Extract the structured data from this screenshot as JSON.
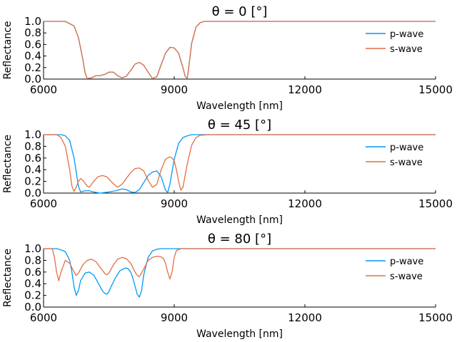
{
  "chart_data": [
    {
      "type": "line",
      "title": "θ = 0 [°]",
      "xlabel": "Wavelength [nm]",
      "ylabel": "Reflectance",
      "xlim": [
        6000,
        15000
      ],
      "ylim": [
        0,
        1
      ],
      "xticks": [
        "6000",
        "9000",
        "12000",
        "15000"
      ],
      "yticks": [
        "0.0",
        "0.2",
        "0.4",
        "0.6",
        "0.8",
        "1.0"
      ],
      "legend": "right",
      "grid": false,
      "series": [
        {
          "name": "p-wave",
          "color": "#009AFA",
          "x": [
            6000,
            6500,
            6700,
            6800,
            6900,
            6950,
            7000,
            7100,
            7200,
            7300,
            7400,
            7500,
            7600,
            7700,
            7800,
            7900,
            8000,
            8100,
            8200,
            8300,
            8400,
            8500,
            8600,
            8700,
            8800,
            8900,
            9000,
            9100,
            9200,
            9250,
            9300,
            9350,
            9400,
            9500,
            9600,
            9700,
            9800,
            10000,
            11000,
            12000,
            13000,
            14000,
            15000
          ],
          "y": [
            1.0,
            1.0,
            0.92,
            0.72,
            0.35,
            0.12,
            0.01,
            0.02,
            0.06,
            0.06,
            0.08,
            0.12,
            0.12,
            0.06,
            0.02,
            0.05,
            0.15,
            0.26,
            0.29,
            0.24,
            0.12,
            0.01,
            0.04,
            0.25,
            0.45,
            0.55,
            0.54,
            0.45,
            0.2,
            0.05,
            0.01,
            0.3,
            0.62,
            0.9,
            0.98,
            1.0,
            1.0,
            1.0,
            1.0,
            1.0,
            1.0,
            1.0,
            1.0
          ]
        },
        {
          "name": "s-wave",
          "color": "#E26F46",
          "x": [
            6000,
            6500,
            6700,
            6800,
            6900,
            6950,
            7000,
            7100,
            7200,
            7300,
            7400,
            7500,
            7600,
            7700,
            7800,
            7900,
            8000,
            8100,
            8200,
            8300,
            8400,
            8500,
            8600,
            8700,
            8800,
            8900,
            9000,
            9100,
            9200,
            9250,
            9300,
            9350,
            9400,
            9500,
            9600,
            9700,
            9800,
            10000,
            11000,
            12000,
            13000,
            14000,
            15000
          ],
          "y": [
            1.0,
            1.0,
            0.92,
            0.72,
            0.35,
            0.12,
            0.01,
            0.02,
            0.06,
            0.06,
            0.08,
            0.12,
            0.12,
            0.06,
            0.02,
            0.05,
            0.15,
            0.26,
            0.29,
            0.24,
            0.12,
            0.01,
            0.04,
            0.25,
            0.45,
            0.55,
            0.54,
            0.45,
            0.2,
            0.05,
            0.01,
            0.3,
            0.62,
            0.9,
            0.98,
            1.0,
            1.0,
            1.0,
            1.0,
            1.0,
            1.0,
            1.0,
            1.0
          ]
        }
      ]
    },
    {
      "type": "line",
      "title": "θ = 45 [°]",
      "xlabel": "Wavelength [nm]",
      "ylabel": "Reflectance",
      "xlim": [
        6000,
        15000
      ],
      "ylim": [
        0,
        1
      ],
      "xticks": [
        "6000",
        "9000",
        "12000",
        "15000"
      ],
      "yticks": [
        "0.0",
        "0.2",
        "0.4",
        "0.6",
        "0.8",
        "1.0"
      ],
      "legend": "right",
      "grid": false,
      "series": [
        {
          "name": "p-wave",
          "color": "#009AFA",
          "x": [
            6000,
            6400,
            6500,
            6600,
            6700,
            6800,
            6850,
            6950,
            7050,
            7150,
            7300,
            7500,
            7650,
            7800,
            7900,
            8000,
            8100,
            8200,
            8300,
            8400,
            8500,
            8600,
            8700,
            8800,
            8850,
            8900,
            9000,
            9100,
            9200,
            9300,
            9400,
            9500,
            9600,
            9800,
            10500,
            12000,
            15000
          ],
          "y": [
            1.0,
            1.0,
            0.98,
            0.9,
            0.6,
            0.12,
            0.02,
            0.04,
            0.04,
            0.02,
            0.0,
            0.02,
            0.04,
            0.07,
            0.06,
            0.02,
            0.01,
            0.06,
            0.18,
            0.3,
            0.36,
            0.38,
            0.28,
            0.05,
            0.01,
            0.15,
            0.58,
            0.85,
            0.95,
            0.98,
            1.0,
            1.0,
            1.0,
            1.0,
            1.0,
            1.0,
            1.0
          ]
        },
        {
          "name": "s-wave",
          "color": "#E26F46",
          "x": [
            6000,
            6300,
            6400,
            6500,
            6600,
            6650,
            6700,
            6750,
            6800,
            6850,
            6900,
            7000,
            7050,
            7150,
            7250,
            7350,
            7450,
            7550,
            7650,
            7700,
            7800,
            7900,
            8000,
            8100,
            8200,
            8300,
            8350,
            8400,
            8500,
            8600,
            8700,
            8800,
            8900,
            8950,
            9000,
            9050,
            9100,
            9150,
            9200,
            9300,
            9400,
            9500,
            9600,
            9800,
            10500,
            12000,
            15000
          ],
          "y": [
            1.0,
            1.0,
            0.95,
            0.8,
            0.4,
            0.12,
            0.03,
            0.1,
            0.2,
            0.25,
            0.22,
            0.12,
            0.1,
            0.2,
            0.28,
            0.3,
            0.28,
            0.2,
            0.13,
            0.1,
            0.15,
            0.25,
            0.35,
            0.42,
            0.43,
            0.38,
            0.3,
            0.22,
            0.1,
            0.15,
            0.4,
            0.58,
            0.62,
            0.6,
            0.55,
            0.4,
            0.2,
            0.05,
            0.1,
            0.5,
            0.82,
            0.95,
            0.99,
            1.0,
            1.0,
            1.0,
            1.0
          ]
        }
      ]
    },
    {
      "type": "line",
      "title": "θ = 80 [°]",
      "xlabel": "Wavelength [nm]",
      "ylabel": "Reflectance",
      "xlim": [
        6000,
        15000
      ],
      "ylim": [
        0,
        1
      ],
      "xticks": [
        "6000",
        "9000",
        "12000",
        "15000"
      ],
      "yticks": [
        "0.0",
        "0.2",
        "0.4",
        "0.6",
        "0.8",
        "1.0"
      ],
      "legend": "right",
      "grid": false,
      "series": [
        {
          "name": "p-wave",
          "color": "#009AFA",
          "x": [
            6000,
            6300,
            6400,
            6500,
            6600,
            6650,
            6700,
            6750,
            6800,
            6850,
            6950,
            7050,
            7150,
            7250,
            7350,
            7400,
            7450,
            7500,
            7550,
            7650,
            7750,
            7850,
            7900,
            7950,
            8000,
            8050,
            8100,
            8150,
            8200,
            8250,
            8300,
            8400,
            8500,
            8600,
            8700,
            8800,
            9000,
            9200,
            10000,
            12000,
            15000
          ],
          "y": [
            1.0,
            1.0,
            0.98,
            0.95,
            0.8,
            0.6,
            0.35,
            0.2,
            0.28,
            0.45,
            0.58,
            0.6,
            0.55,
            0.42,
            0.28,
            0.24,
            0.22,
            0.26,
            0.35,
            0.5,
            0.62,
            0.66,
            0.67,
            0.65,
            0.6,
            0.5,
            0.36,
            0.22,
            0.17,
            0.28,
            0.55,
            0.85,
            0.96,
            0.99,
            1.0,
            1.0,
            1.0,
            1.0,
            1.0,
            1.0,
            1.0
          ]
        },
        {
          "name": "s-wave",
          "color": "#E26F46",
          "x": [
            6000,
            6200,
            6250,
            6300,
            6350,
            6400,
            6500,
            6600,
            6700,
            6750,
            6800,
            6900,
            7000,
            7100,
            7200,
            7300,
            7400,
            7450,
            7500,
            7600,
            7700,
            7800,
            7900,
            8000,
            8100,
            8150,
            8200,
            8300,
            8400,
            8500,
            8600,
            8700,
            8750,
            8800,
            8850,
            8900,
            8950,
            9000,
            9050,
            9150,
            9300,
            10000,
            12000,
            15000
          ],
          "y": [
            1.0,
            1.0,
            0.85,
            0.6,
            0.45,
            0.6,
            0.8,
            0.75,
            0.6,
            0.54,
            0.58,
            0.72,
            0.8,
            0.82,
            0.78,
            0.68,
            0.58,
            0.55,
            0.58,
            0.72,
            0.82,
            0.85,
            0.83,
            0.75,
            0.6,
            0.54,
            0.52,
            0.65,
            0.8,
            0.85,
            0.87,
            0.86,
            0.83,
            0.75,
            0.6,
            0.48,
            0.6,
            0.85,
            0.97,
            1.0,
            1.0,
            1.0,
            1.0,
            1.0
          ]
        }
      ]
    }
  ]
}
